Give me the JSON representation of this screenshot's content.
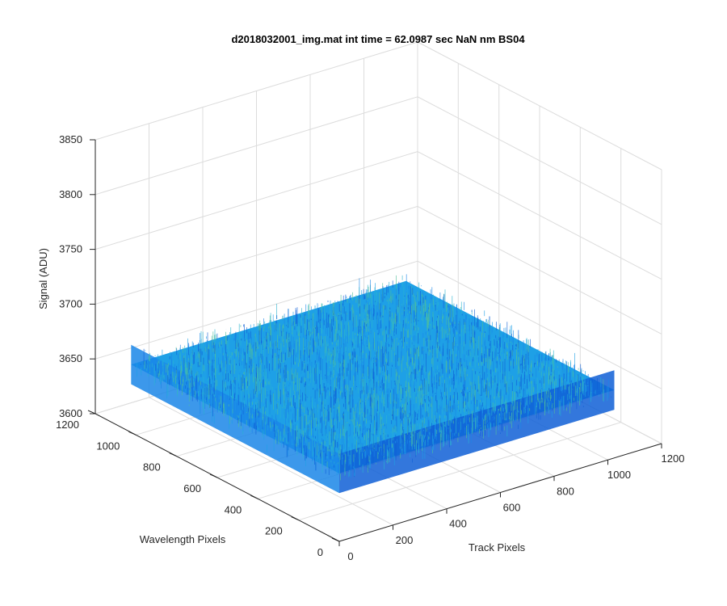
{
  "chart_data": {
    "type": "surface",
    "title": "d2018032001_img.mat int time = 62.0987 sec  NaN nm BS04",
    "xlabel": "Track Pixels",
    "ylabel": "Wavelength Pixels",
    "zlabel": "Signal (ADU)",
    "xlim": [
      0,
      1200
    ],
    "ylim": [
      0,
      1200
    ],
    "zlim": [
      3600,
      3850
    ],
    "x_ticks": [
      0,
      200,
      400,
      600,
      800,
      1000,
      1200
    ],
    "y_ticks": [
      0,
      200,
      400,
      600,
      800,
      1000,
      1200
    ],
    "z_ticks": [
      3600,
      3650,
      3700,
      3750,
      3800,
      3850
    ],
    "x_ticklabels": [
      "0",
      "200",
      "400",
      "600",
      "800",
      "1000",
      "1200"
    ],
    "y_ticklabels": [
      "0",
      "200",
      "400",
      "600",
      "800",
      "1000",
      "1200"
    ],
    "z_ticklabels": [
      "3600",
      "3650",
      "3700",
      "3750",
      "3800",
      "3850"
    ],
    "surface_extent": {
      "x": [
        0,
        1024
      ],
      "y": [
        0,
        1024
      ]
    },
    "signal_mean": 3662,
    "signal_noise_range": [
      3630,
      3700
    ],
    "grid": true,
    "colormap": "parula",
    "surface_colors": [
      "#0f5fd6",
      "#1a86e8",
      "#1ea0e6",
      "#2ab3d0",
      "#4fbf9a"
    ]
  }
}
